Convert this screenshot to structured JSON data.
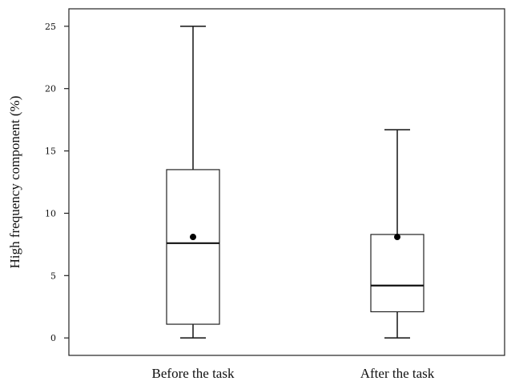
{
  "chart_data": {
    "type": "box",
    "ylabel": "High frequency component (%)",
    "xlabel": "",
    "ylim": [
      -1.4,
      26.4
    ],
    "yticks": [
      0,
      5,
      10,
      15,
      20,
      25
    ],
    "grid": false,
    "legend": "none",
    "categories": [
      "Before the task",
      "After the task"
    ],
    "boxes": [
      {
        "category": "Before the task",
        "min": 0,
        "q1": 1.1,
        "median": 7.6,
        "q3": 13.5,
        "max": 25,
        "mean": 8.1
      },
      {
        "category": "After the task",
        "min": 0,
        "q1": 2.1,
        "median": 4.2,
        "q3": 8.3,
        "max": 16.7,
        "mean": 8.1
      }
    ]
  }
}
